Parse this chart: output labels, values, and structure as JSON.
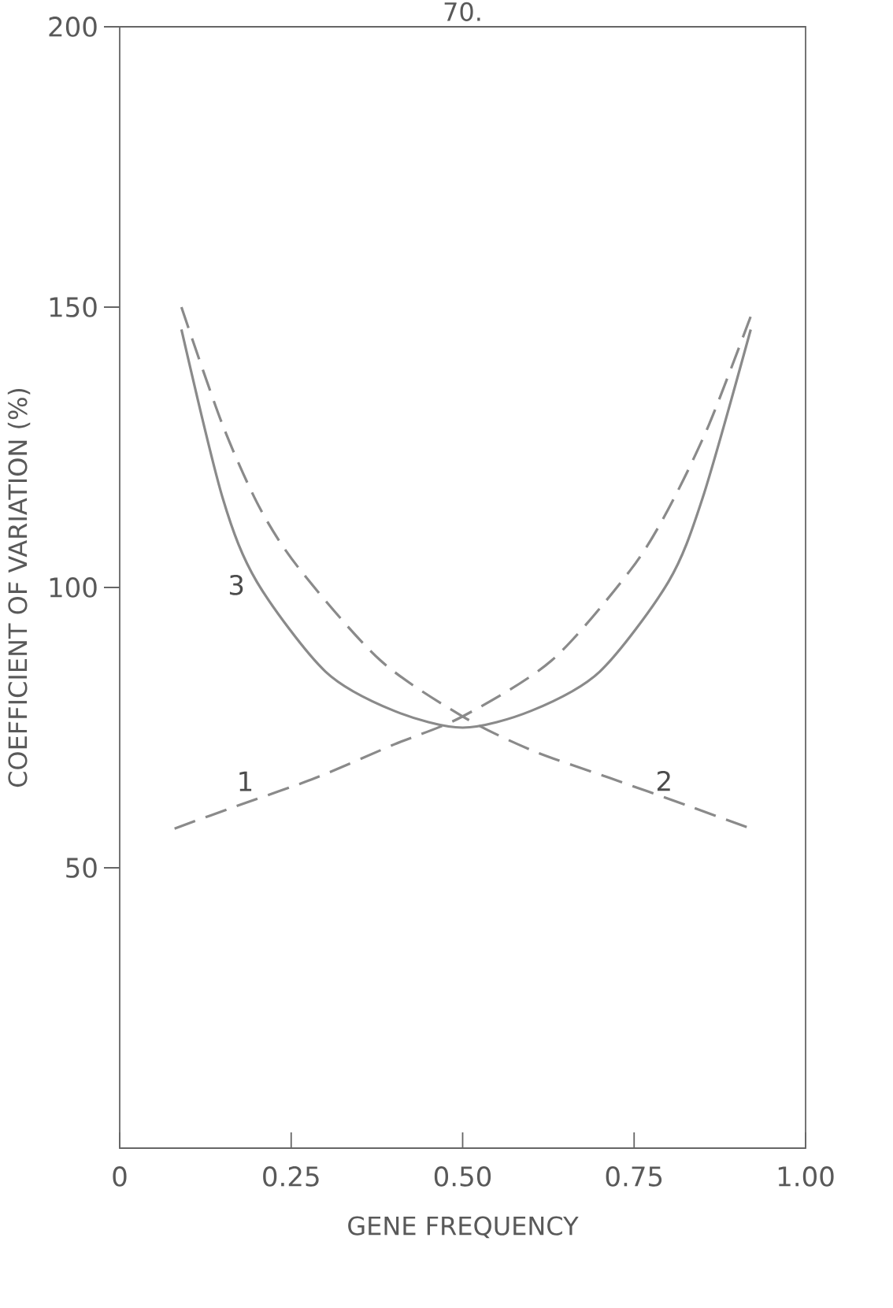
{
  "chart_data": {
    "type": "line",
    "xlabel": "GENE   FREQUENCY",
    "ylabel": "COEFFICIENT OF VARIATION  (%)",
    "annotations": [
      "70."
    ],
    "xlim": [
      0,
      1
    ],
    "ylim": [
      0,
      200
    ],
    "xticks": [
      {
        "value": 0,
        "label": "0"
      },
      {
        "value": 0.25,
        "label": "0.25"
      },
      {
        "value": 0.5,
        "label": "0.50"
      },
      {
        "value": 0.75,
        "label": "0.75"
      },
      {
        "value": 1,
        "label": "1.00"
      }
    ],
    "yticks": [
      50,
      100,
      150,
      200
    ],
    "grid": false,
    "series": [
      {
        "name": "1",
        "color": "#8a8a8a",
        "line_style": "dashed",
        "x": [
          0.08,
          0.17,
          0.285,
          0.4,
          0.5,
          0.63,
          0.744,
          0.8,
          0.859,
          0.922
        ],
        "values": [
          57,
          61,
          66,
          72,
          77,
          87,
          103,
          114,
          129,
          149
        ]
      },
      {
        "name": "2",
        "color": "#8a8a8a",
        "line_style": "dashed",
        "x": [
          0.09,
          0.15,
          0.205,
          0.264,
          0.38,
          0.5,
          0.6,
          0.715,
          0.83,
          0.92
        ],
        "values": [
          150,
          129,
          114,
          103,
          87,
          77,
          71,
          66,
          61,
          57
        ]
      },
      {
        "name": "3",
        "color": "#8a8a8a",
        "line_style": "solid",
        "x": [
          0.09,
          0.15,
          0.2,
          0.3,
          0.4,
          0.5,
          0.6,
          0.7,
          0.8,
          0.85,
          0.92
        ],
        "values": [
          146,
          116,
          101,
          85,
          78,
          75,
          78,
          85,
          101,
          116,
          146
        ]
      }
    ]
  }
}
